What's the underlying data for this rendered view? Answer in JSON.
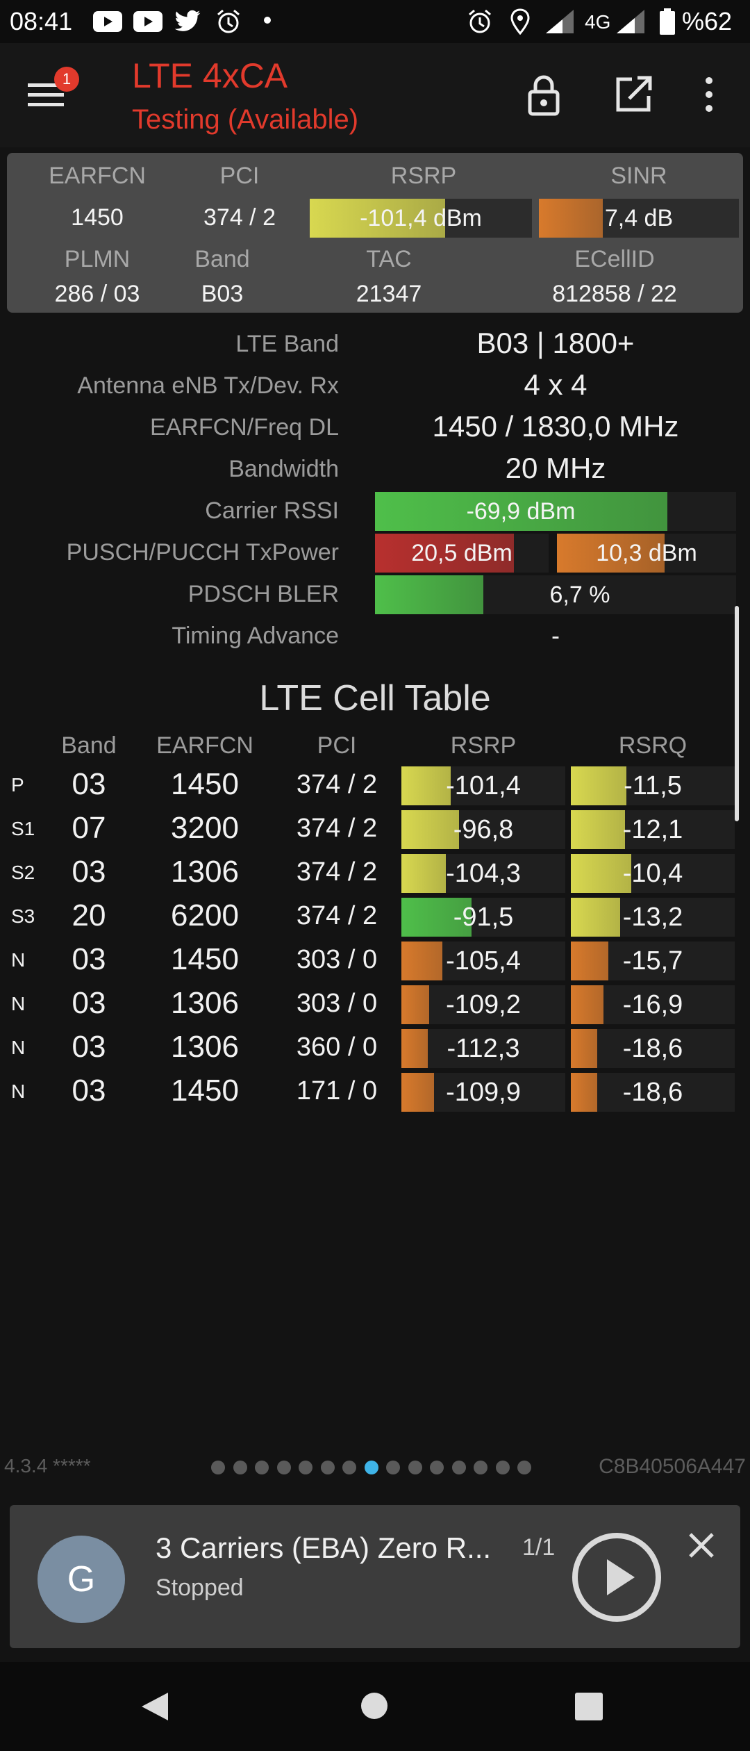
{
  "status_bar": {
    "time": "08:41",
    "left_icons": [
      "youtube-icon",
      "youtube-icon",
      "twitter-icon",
      "alarm-icon",
      "dot-icon"
    ],
    "right_icons": [
      "alarm-icon",
      "location-icon",
      "signal-icon",
      "signal-icon",
      "battery-icon"
    ],
    "network": "4G",
    "battery": "%62"
  },
  "app_bar": {
    "title": "LTE 4xCA",
    "subtitle": "Testing (Available)",
    "badge": "1",
    "icons": [
      "menu-icon",
      "lock-icon",
      "open-external-icon",
      "more-vert-icon"
    ],
    "title_color": "#e23a2c"
  },
  "header": {
    "labels": {
      "earfcn": "EARFCN",
      "pci": "PCI",
      "rsrp": "RSRP",
      "sinr": "SINR",
      "plmn": "PLMN",
      "band": "Band",
      "tac": "TAC",
      "ecellid": "ECellID"
    },
    "values": {
      "earfcn": "1450",
      "pci": "374 / 2",
      "rsrp": "-101,4 dBm",
      "sinr": "7,4 dB",
      "plmn": "286 / 03",
      "band": "B03",
      "tac": "21347",
      "ecellid": "812858 / 22"
    },
    "rsrp_level": 0.61,
    "sinr_level": 0.32
  },
  "info": [
    {
      "label": "LTE Band",
      "value": "B03 | 1800+"
    },
    {
      "label": "Antenna eNB Tx/Dev. Rx",
      "value": "4 x 4"
    },
    {
      "label": "EARFCN/Freq DL",
      "value": "1450 / 1830,0 MHz"
    },
    {
      "label": "Bandwidth",
      "value": "20 MHz"
    },
    {
      "label": "Carrier RSSI",
      "value": "-69,9 dBm",
      "level": 0.81
    },
    {
      "label": "PUSCH/PUCCH TxPower",
      "value": "20,5 dBm",
      "value2": "10,3 dBm",
      "level": 0.8,
      "level2": 0.6
    },
    {
      "label": "PDSCH BLER",
      "value": "6,7 %",
      "level": 0.3
    },
    {
      "label": "Timing Advance",
      "value": "-"
    }
  ],
  "cell_table": {
    "title": "LTE Cell Table",
    "headers": [
      "Band",
      "EARFCN",
      "PCI",
      "RSRP",
      "RSRQ"
    ],
    "rows": [
      {
        "type": "P",
        "band": "03",
        "earfcn": "1450",
        "pci": "374 / 2",
        "rsrp": "-101,4",
        "rsrq": "-11,5",
        "rsrp_level": 0.3,
        "rsrq_level": 0.34,
        "rsrp_color": "yellow",
        "rsrq_color": "yellow"
      },
      {
        "type": "S1",
        "band": "07",
        "earfcn": "3200",
        "pci": "374 / 2",
        "rsrp": "-96,8",
        "rsrq": "-12,1",
        "rsrp_level": 0.35,
        "rsrq_level": 0.33,
        "rsrp_color": "yellow",
        "rsrq_color": "yellow"
      },
      {
        "type": "S2",
        "band": "03",
        "earfcn": "1306",
        "pci": "374 / 2",
        "rsrp": "-104,3",
        "rsrq": "-10,4",
        "rsrp_level": 0.27,
        "rsrq_level": 0.37,
        "rsrp_color": "yellow",
        "rsrq_color": "yellow"
      },
      {
        "type": "S3",
        "band": "20",
        "earfcn": "6200",
        "pci": "374 / 2",
        "rsrp": "-91,5",
        "rsrq": "-13,2",
        "rsrp_level": 0.43,
        "rsrq_level": 0.3,
        "rsrp_color": "green",
        "rsrq_color": "yellow"
      },
      {
        "type": "N",
        "band": "03",
        "earfcn": "1450",
        "pci": "303 / 0",
        "rsrp": "-105,4",
        "rsrq": "-15,7",
        "rsrp_level": 0.25,
        "rsrq_level": 0.23,
        "rsrp_color": "orange",
        "rsrq_color": "orange"
      },
      {
        "type": "N",
        "band": "03",
        "earfcn": "1306",
        "pci": "303 / 0",
        "rsrp": "-109,2",
        "rsrq": "-16,9",
        "rsrp_level": 0.17,
        "rsrq_level": 0.2,
        "rsrp_color": "orange",
        "rsrq_color": "orange"
      },
      {
        "type": "N",
        "band": "03",
        "earfcn": "1306",
        "pci": "360 / 0",
        "rsrp": "-112,3",
        "rsrq": "-18,6",
        "rsrp_level": 0.16,
        "rsrq_level": 0.16,
        "rsrp_color": "orange",
        "rsrq_color": "orange"
      },
      {
        "type": "N",
        "band": "03",
        "earfcn": "1450",
        "pci": "171 / 0",
        "rsrp": "-109,9",
        "rsrq": "-18,6",
        "rsrp_level": 0.2,
        "rsrq_level": 0.16,
        "rsrp_color": "orange",
        "rsrq_color": "orange"
      }
    ]
  },
  "footer": {
    "version": "4.3.4 *****",
    "device_id": "C8B40506A447",
    "page_count": 15,
    "active_page": 7
  },
  "media": {
    "avatar_letter": "G",
    "title": "3 Carriers (EBA) Zero R...",
    "counter": "1/1",
    "status": "Stopped",
    "icons": [
      "play-icon",
      "close-icon"
    ]
  },
  "nav_bar": {
    "icons": [
      "back-icon",
      "home-icon",
      "recents-icon"
    ]
  },
  "colors": {
    "yellow": "#d8d850",
    "green": "#4fbf4a",
    "orange": "#d87a2c",
    "red": "#b8302e",
    "accent_dot": "#3fb4e8"
  }
}
